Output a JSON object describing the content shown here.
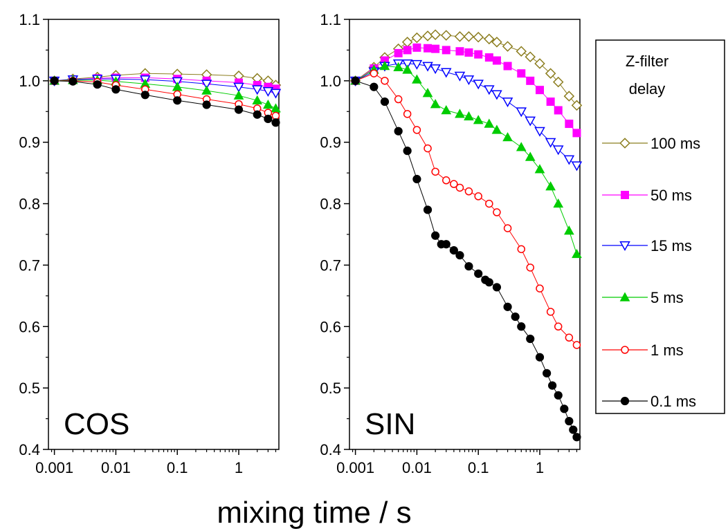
{
  "chart_data": {
    "type": "scatter",
    "xlabel": "mixing time / s",
    "x_scale": "log",
    "xlim": [
      0.0008,
      4.5
    ],
    "ylim": [
      0.4,
      1.1
    ],
    "x_ticks": [
      0.001,
      0.01,
      0.1,
      1
    ],
    "x_tick_labels": [
      "0.001",
      "0.01",
      "0.1",
      "1"
    ],
    "y_ticks": [
      0.4,
      0.5,
      0.6,
      0.7,
      0.8,
      0.9,
      1.0,
      1.1
    ],
    "y_tick_labels": [
      "0.4",
      "0.5",
      "0.6",
      "0.7",
      "0.8",
      "0.9",
      "1.0",
      "1.1"
    ],
    "grid": false,
    "legend": {
      "title_lines": [
        "Z-filter",
        "delay"
      ],
      "placement": "right"
    },
    "series_styles": [
      {
        "name": "100 ms",
        "color": "#8b7d1e",
        "marker": "diamond-open"
      },
      {
        "name": "50 ms",
        "color": "#ff00ff",
        "marker": "square-filled"
      },
      {
        "name": "15 ms",
        "color": "#0000ff",
        "marker": "triangle-down-open"
      },
      {
        "name": "5 ms",
        "color": "#00cc00",
        "marker": "triangle-up-filled"
      },
      {
        "name": "1 ms",
        "color": "#ff0000",
        "marker": "circle-open"
      },
      {
        "name": "0.1 ms",
        "color": "#000000",
        "marker": "circle-filled"
      }
    ],
    "panels": [
      {
        "label": "COS",
        "series": [
          {
            "name": "100 ms",
            "x": [
              0.001,
              0.002,
              0.005,
              0.01,
              0.03,
              0.1,
              0.3,
              1,
              2,
              3,
              4
            ],
            "y": [
              1.0,
              1.003,
              1.006,
              1.009,
              1.012,
              1.011,
              1.01,
              1.008,
              1.004,
              1.0,
              0.993
            ]
          },
          {
            "name": "50 ms",
            "x": [
              0.001,
              0.002,
              0.005,
              0.01,
              0.03,
              0.1,
              0.3,
              1,
              2,
              3,
              4
            ],
            "y": [
              1.0,
              1.002,
              1.004,
              1.005,
              1.005,
              1.003,
              1.0,
              0.997,
              0.993,
              0.99,
              0.987
            ]
          },
          {
            "name": "15 ms",
            "x": [
              0.001,
              0.002,
              0.005,
              0.01,
              0.03,
              0.1,
              0.3,
              1,
              2,
              3,
              4
            ],
            "y": [
              1.0,
              1.002,
              1.003,
              1.003,
              1.002,
              0.999,
              0.995,
              0.99,
              0.986,
              0.983,
              0.98
            ]
          },
          {
            "name": "5 ms",
            "x": [
              0.001,
              0.002,
              0.005,
              0.01,
              0.03,
              0.1,
              0.3,
              1,
              2,
              3,
              4
            ],
            "y": [
              1.0,
              1.001,
              1.001,
              0.999,
              0.995,
              0.99,
              0.984,
              0.976,
              0.968,
              0.961,
              0.955
            ]
          },
          {
            "name": "1 ms",
            "x": [
              0.001,
              0.002,
              0.005,
              0.01,
              0.03,
              0.1,
              0.3,
              1,
              2,
              3,
              4
            ],
            "y": [
              1.0,
              1.0,
              0.998,
              0.993,
              0.986,
              0.978,
              0.97,
              0.962,
              0.955,
              0.948,
              0.943
            ]
          },
          {
            "name": "0.1 ms",
            "x": [
              0.001,
              0.002,
              0.005,
              0.01,
              0.03,
              0.1,
              0.3,
              1,
              2,
              3,
              4
            ],
            "y": [
              1.0,
              0.999,
              0.994,
              0.986,
              0.977,
              0.968,
              0.961,
              0.953,
              0.945,
              0.938,
              0.932
            ]
          }
        ]
      },
      {
        "label": "SIN",
        "series": [
          {
            "name": "100 ms",
            "x": [
              0.001,
              0.002,
              0.003,
              0.005,
              0.007,
              0.01,
              0.015,
              0.02,
              0.03,
              0.05,
              0.07,
              0.1,
              0.15,
              0.2,
              0.3,
              0.5,
              0.7,
              1,
              1.5,
              2,
              3,
              4
            ],
            "y": [
              1.0,
              1.022,
              1.038,
              1.052,
              1.063,
              1.07,
              1.073,
              1.075,
              1.074,
              1.072,
              1.072,
              1.071,
              1.068,
              1.063,
              1.056,
              1.048,
              1.039,
              1.028,
              1.012,
              0.998,
              0.975,
              0.96
            ]
          },
          {
            "name": "50 ms",
            "x": [
              0.001,
              0.002,
              0.003,
              0.005,
              0.007,
              0.01,
              0.015,
              0.02,
              0.03,
              0.05,
              0.07,
              0.1,
              0.15,
              0.2,
              0.3,
              0.5,
              0.7,
              1,
              1.5,
              2,
              3,
              4
            ],
            "y": [
              1.0,
              1.02,
              1.033,
              1.045,
              1.05,
              1.054,
              1.053,
              1.052,
              1.05,
              1.048,
              1.046,
              1.043,
              1.038,
              1.033,
              1.024,
              1.012,
              1.0,
              0.985,
              0.966,
              0.952,
              0.93,
              0.915
            ]
          },
          {
            "name": "15 ms",
            "x": [
              0.001,
              0.002,
              0.003,
              0.005,
              0.007,
              0.01,
              0.015,
              0.02,
              0.03,
              0.05,
              0.07,
              0.1,
              0.15,
              0.2,
              0.3,
              0.5,
              0.7,
              1,
              1.5,
              2,
              3,
              4
            ],
            "y": [
              1.0,
              1.015,
              1.024,
              1.028,
              1.028,
              1.027,
              1.024,
              1.02,
              1.014,
              1.008,
              1.002,
              0.995,
              0.986,
              0.978,
              0.966,
              0.95,
              0.935,
              0.918,
              0.9,
              0.888,
              0.872,
              0.862
            ]
          },
          {
            "name": "5 ms",
            "x": [
              0.001,
              0.002,
              0.003,
              0.005,
              0.007,
              0.01,
              0.015,
              0.02,
              0.03,
              0.05,
              0.07,
              0.1,
              0.15,
              0.2,
              0.3,
              0.5,
              0.7,
              1,
              1.5,
              2,
              3,
              4
            ],
            "y": [
              1.0,
              1.018,
              1.024,
              1.022,
              1.018,
              1.002,
              0.98,
              0.962,
              0.952,
              0.946,
              0.942,
              0.936,
              0.93,
              0.92,
              0.908,
              0.892,
              0.876,
              0.856,
              0.828,
              0.8,
              0.756,
              0.718
            ]
          },
          {
            "name": "1 ms",
            "x": [
              0.001,
              0.002,
              0.003,
              0.005,
              0.007,
              0.01,
              0.015,
              0.02,
              0.03,
              0.04,
              0.05,
              0.07,
              0.1,
              0.15,
              0.2,
              0.3,
              0.5,
              0.7,
              1,
              1.5,
              2,
              3,
              4
            ],
            "y": [
              1.0,
              1.012,
              1.0,
              0.97,
              0.946,
              0.92,
              0.89,
              0.852,
              0.838,
              0.832,
              0.826,
              0.82,
              0.812,
              0.8,
              0.786,
              0.76,
              0.726,
              0.696,
              0.662,
              0.624,
              0.6,
              0.582,
              0.57
            ]
          },
          {
            "name": "0.1 ms",
            "x": [
              0.001,
              0.002,
              0.003,
              0.005,
              0.007,
              0.01,
              0.015,
              0.02,
              0.025,
              0.03,
              0.04,
              0.05,
              0.07,
              0.1,
              0.13,
              0.15,
              0.2,
              0.3,
              0.4,
              0.5,
              0.7,
              1,
              1.3,
              1.6,
              2,
              2.5,
              3,
              3.5,
              4
            ],
            "y": [
              1.0,
              0.99,
              0.966,
              0.918,
              0.886,
              0.84,
              0.79,
              0.748,
              0.734,
              0.734,
              0.724,
              0.716,
              0.698,
              0.686,
              0.676,
              0.672,
              0.664,
              0.632,
              0.616,
              0.6,
              0.58,
              0.55,
              0.524,
              0.504,
              0.488,
              0.466,
              0.446,
              0.432,
              0.42
            ]
          }
        ]
      }
    ]
  }
}
